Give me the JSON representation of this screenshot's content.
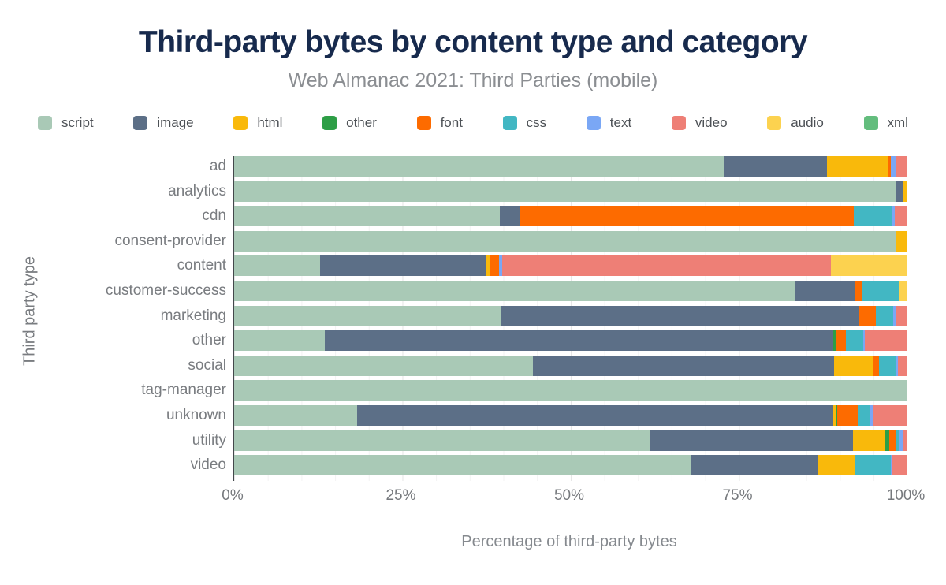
{
  "title": "Third-party bytes by content type and category",
  "subtitle": "Web Almanac 2021: Third Parties (mobile)",
  "colors": {
    "script": "#a9c9b6",
    "image": "#5c6f87",
    "html": "#f9b90b",
    "other": "#2d9e46",
    "font": "#fd6b00",
    "css": "#42b7c3",
    "text": "#7aa7f5",
    "video": "#ee7f76",
    "audio": "#fcd24f",
    "xml": "#63bd7d"
  },
  "chart_data": {
    "type": "bar",
    "stacked": true,
    "orientation": "horizontal",
    "title": "Third-party bytes by content type and category",
    "subtitle": "Web Almanac 2021: Third Parties (mobile)",
    "xlabel": "Percentage of third-party bytes",
    "ylabel": "Third party type",
    "xlim": [
      0,
      100
    ],
    "xticks": [
      {
        "value": 0,
        "label": "0%"
      },
      {
        "value": 25,
        "label": "25%"
      },
      {
        "value": 50,
        "label": "50%"
      },
      {
        "value": 75,
        "label": "75%"
      },
      {
        "value": 100,
        "label": "100%"
      }
    ],
    "grid": "vertical, every 5%, faint",
    "legend_position": "top",
    "legend": [
      "script",
      "image",
      "html",
      "other",
      "font",
      "css",
      "text",
      "video",
      "audio",
      "xml"
    ],
    "categories": [
      "ad",
      "analytics",
      "cdn",
      "consent-provider",
      "content",
      "customer-success",
      "marketing",
      "other",
      "social",
      "tag-manager",
      "unknown",
      "utility",
      "video"
    ],
    "series": [
      {
        "name": "script",
        "values": [
          72.7,
          98.4,
          39.5,
          98.3,
          12.8,
          83.2,
          39.7,
          13.5,
          44.4,
          100,
          18.3,
          61.7,
          67.8
        ]
      },
      {
        "name": "image",
        "values": [
          15.3,
          0.9,
          2.9,
          0,
          24.7,
          9.1,
          53.1,
          75.5,
          44.7,
          0,
          70.7,
          30.2,
          18.8
        ]
      },
      {
        "name": "html",
        "values": [
          9.1,
          0.7,
          0,
          1.7,
          0.6,
          0,
          0,
          0,
          5.9,
          0,
          0.3,
          4.8,
          5.7
        ]
      },
      {
        "name": "other",
        "values": [
          0,
          0,
          0,
          0,
          0,
          0,
          0,
          0.3,
          0,
          0,
          0.3,
          0.6,
          0
        ]
      },
      {
        "name": "font",
        "values": [
          0.5,
          0,
          49.6,
          0,
          1.3,
          1.0,
          2.5,
          1.6,
          0.8,
          0,
          3.1,
          0.9,
          0
        ]
      },
      {
        "name": "css",
        "values": [
          0,
          0,
          5.7,
          0,
          0,
          5.5,
          2.6,
          2.5,
          2.4,
          0,
          1.8,
          0.6,
          5.2
        ]
      },
      {
        "name": "text",
        "values": [
          0.8,
          0,
          0.4,
          0,
          0.4,
          0,
          0.3,
          0.3,
          0.4,
          0,
          0.4,
          0.5,
          0.3
        ]
      },
      {
        "name": "video",
        "values": [
          1.6,
          0,
          1.9,
          0,
          48.9,
          0,
          1.8,
          6.3,
          1.4,
          0,
          5.1,
          0.7,
          2.2
        ]
      },
      {
        "name": "audio",
        "values": [
          0,
          0,
          0,
          0,
          11.3,
          1.2,
          0,
          0,
          0,
          0,
          0,
          0,
          0
        ]
      },
      {
        "name": "xml",
        "values": [
          0,
          0,
          0,
          0,
          0,
          0,
          0,
          0,
          0,
          0,
          0,
          0,
          0
        ]
      }
    ]
  }
}
